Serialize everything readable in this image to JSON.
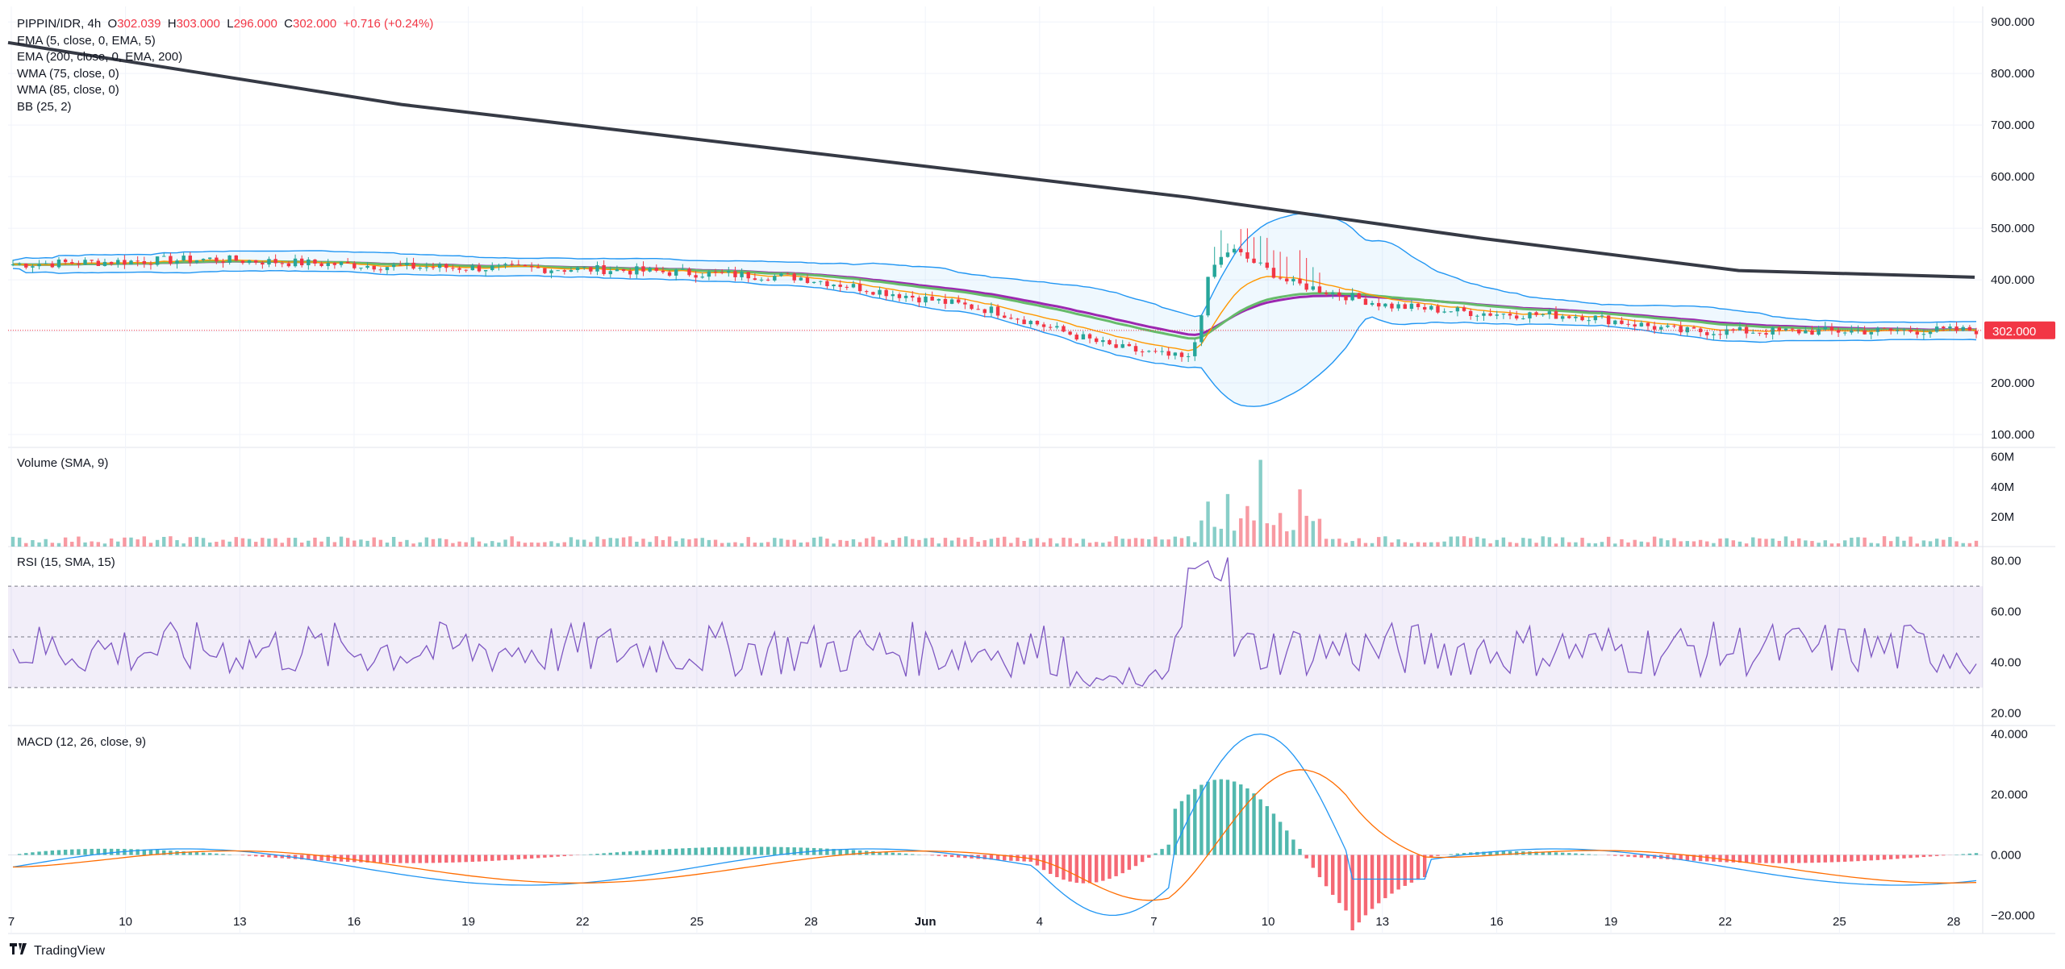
{
  "header": {
    "symbol": "PIPPIN/IDR, 4h",
    "o_label": "O",
    "o_value": "302.039",
    "h_label": "H",
    "h_value": "303.000",
    "l_label": "L",
    "l_value": "296.000",
    "c_label": "C",
    "c_value": "302.000",
    "change": "+0.716 (+0.24%)"
  },
  "indicators": [
    "EMA (5, close, 0, EMA, 5)",
    "EMA (200, close, 0, EMA, 200)",
    "WMA (75, close, 0)",
    "WMA (85, close, 0)",
    "BB (25, 2)"
  ],
  "panes": {
    "volume_label": "Volume (SMA, 9)",
    "rsi_label": "RSI (15, SMA, 15)",
    "macd_label": "MACD (12, 26, close, 9)"
  },
  "price_tag": "302.000",
  "brand": "TradingView",
  "colors": {
    "up": "#26a69a",
    "down": "#f23645",
    "ema200": "#363a45",
    "bb": "#2196f3",
    "rsi": "#7e57c2",
    "macd": "#2196f3",
    "signal": "#ff6d00"
  },
  "chart_data": {
    "type": "line",
    "title": "PIPPIN/IDR, 4h",
    "x_ticks": [
      "7",
      "10",
      "13",
      "16",
      "19",
      "22",
      "25",
      "28",
      "Jun",
      "4",
      "7",
      "10",
      "13",
      "16",
      "19",
      "22",
      "25",
      "28"
    ],
    "price_axis": {
      "ticks": [
        "900.000",
        "800.000",
        "700.000",
        "600.000",
        "500.000",
        "400.000",
        "300.000",
        "200.000",
        "100.000"
      ],
      "ylim": [
        75,
        930
      ]
    },
    "volume_axis": {
      "ticks": [
        "60M",
        "40M",
        "20M"
      ],
      "ylim": [
        0,
        62
      ]
    },
    "rsi_axis": {
      "ticks": [
        "80.00",
        "60.00",
        "40.00",
        "20.00"
      ],
      "ylim": [
        15,
        85
      ],
      "band": [
        30,
        70
      ],
      "mid": 50
    },
    "macd_axis": {
      "ticks": [
        "40.000",
        "20.000",
        "0.000",
        "−20.000"
      ],
      "ylim": [
        -26,
        42
      ]
    },
    "series": [
      {
        "name": "EMA (200, close, 0, EMA, 200)",
        "x": [
          0,
          10,
          20,
          40,
          60,
          75,
          88,
          100
        ],
        "y": [
          860,
          800,
          740,
          650,
          560,
          480,
          418,
          405
        ]
      },
      {
        "name": "price",
        "x": [
          0,
          10,
          20,
          30,
          40,
          50,
          56,
          60,
          61,
          62,
          65,
          70,
          75,
          80,
          85,
          90,
          100
        ],
        "y": [
          430,
          440,
          425,
          420,
          405,
          340,
          270,
          245,
          420,
          460,
          395,
          350,
          335,
          330,
          300,
          300,
          302
        ]
      }
    ],
    "last_price": 302.0,
    "volume_peak": 58,
    "rsi_peak": 83,
    "macd_peak": 40,
    "macd_trough": -20
  }
}
